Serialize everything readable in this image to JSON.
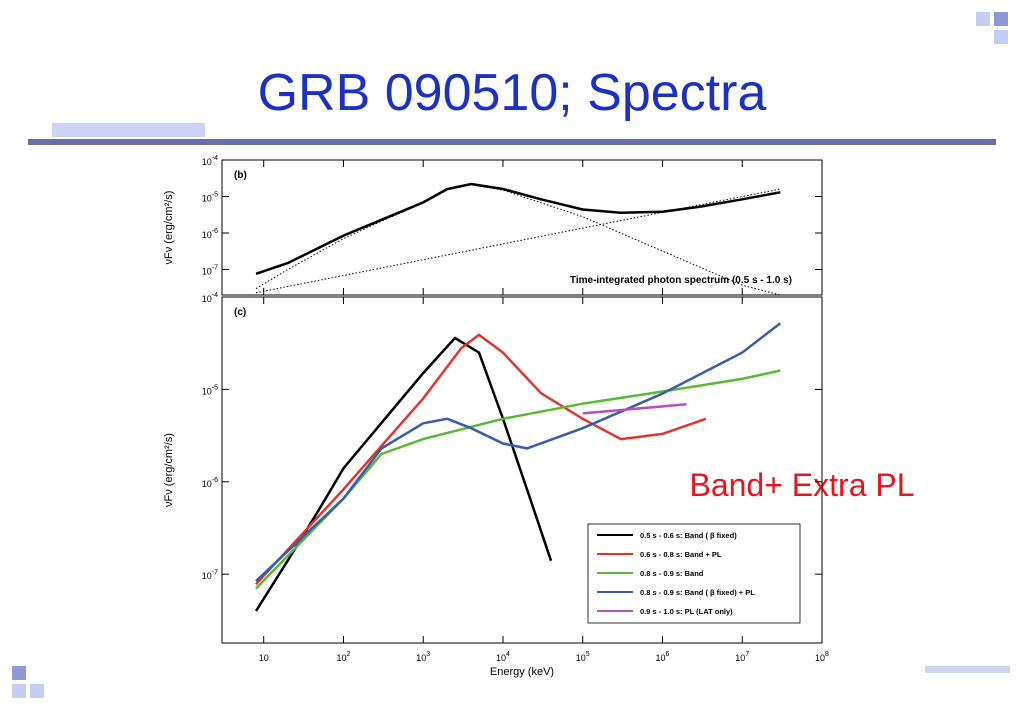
{
  "title": "GRB 090510; Spectra",
  "annotation": "Band+ Extra PL",
  "chart_data": [
    {
      "type": "line",
      "label": "(b)",
      "annotation": "Time-integrated photon spectrum (0.5 s - 1.0 s)",
      "y_label": "νFν (erg/cm²/s)",
      "x_log": true,
      "y_log": true,
      "xlim": [
        3,
        100000000
      ],
      "ylim": [
        2e-08,
        0.0001
      ],
      "xticks": [
        10,
        100,
        1000,
        10000,
        100000,
        1000000,
        10000000,
        100000000
      ],
      "xtick_labels": false,
      "yticks": [
        {
          "value": 0.0001,
          "label": "10",
          "sup": "-4"
        },
        {
          "value": 1e-05,
          "label": "10",
          "sup": "-5"
        },
        {
          "value": 1e-06,
          "label": "10",
          "sup": "-6"
        },
        {
          "value": 1e-07,
          "label": "10",
          "sup": "-7"
        }
      ],
      "series": [
        {
          "color": "#000000",
          "width": 2.5,
          "x": [
            8,
            20,
            100,
            300,
            1000,
            2000,
            4000,
            10000,
            30000,
            100000,
            300000,
            1000000,
            3000000,
            10000000,
            30000000
          ],
          "values": [
            7.6e-08,
            1.5e-07,
            8.5e-07,
            2.3e-06,
            6.9e-06,
            1.6e-05,
            2.2e-05,
            1.6e-05,
            8.4e-06,
            4.4e-06,
            3.6e-06,
            3.8e-06,
            5.3e-06,
            8.4e-06,
            1.3e-05
          ]
        },
        {
          "color": "#000000",
          "width": 1,
          "dash": true,
          "x": [
            8,
            30000000
          ],
          "values": [
            2.3e-08,
            1.6e-05
          ]
        },
        {
          "color": "#000000",
          "width": 1,
          "dash": true,
          "x": [
            8,
            20,
            100,
            300,
            1000,
            2000,
            4000,
            10000,
            100000,
            1000000,
            10000000,
            30000000
          ],
          "values": [
            3e-08,
            1e-07,
            7e-07,
            2.1e-06,
            6.6e-06,
            1.5e-05,
            2.1e-05,
            1.5e-05,
            2.8e-06,
            3.2e-07,
            3.7e-08,
            2e-08
          ]
        }
      ]
    },
    {
      "type": "line",
      "label": "(c)",
      "y_label": "νFν (erg/cm²/s)",
      "x_label": "Energy (keV)",
      "x_log": true,
      "y_log": true,
      "legend": "lower right",
      "xlim": [
        3,
        100000000
      ],
      "ylim": [
        1.8e-08,
        0.0001
      ],
      "xticks": [
        10,
        {
          "value": 100,
          "label": "10",
          "sup": "2"
        },
        {
          "value": 1000,
          "label": "10",
          "sup": "3"
        },
        {
          "value": 10000,
          "label": "10",
          "sup": "4"
        },
        {
          "value": 100000,
          "label": "10",
          "sup": "5"
        },
        {
          "value": 1000000,
          "label": "10",
          "sup": "6"
        },
        {
          "value": 10000000,
          "label": "10",
          "sup": "7"
        },
        {
          "value": 100000000,
          "label": "10",
          "sup": "8"
        }
      ],
      "yticks": [
        {
          "value": 0.0001,
          "label": "10",
          "sup": "-4"
        },
        {
          "value": 1e-05,
          "label": "10",
          "sup": "-5"
        },
        {
          "value": 1e-06,
          "label": "10",
          "sup": "-6"
        },
        {
          "value": 1e-07,
          "label": "10",
          "sup": "-7"
        }
      ],
      "series": [
        {
          "name": "0.5 s - 0.6 s: Band ( β fixed)",
          "color": "#000000",
          "width": 2.5,
          "x": [
            8,
            20,
            50,
            100,
            1000,
            2500,
            5000,
            10000,
            20000,
            40000
          ],
          "values": [
            4e-08,
            1.4e-07,
            5.1e-07,
            1.4e-06,
            1.5e-05,
            3.6e-05,
            2.5e-05,
            4.8e-06,
            8.3e-07,
            1.4e-07
          ]
        },
        {
          "name": "0.6 s - 0.8 s: Band + PL",
          "color": "#e0352b",
          "width": 2.5,
          "x": [
            8,
            100,
            1000,
            3000,
            5000,
            10000,
            30000,
            100000,
            300000,
            1000000,
            3500000
          ],
          "values": [
            7.8e-08,
            8.3e-07,
            8e-06,
            2.8e-05,
            3.9e-05,
            2.5e-05,
            9.1e-06,
            4.8e-06,
            2.9e-06,
            3.3e-06,
            4.8e-06
          ]
        },
        {
          "name": "0.8 s - 0.9 s: Band",
          "color": "#5ab833",
          "width": 2.5,
          "x": [
            8,
            100,
            300,
            1000,
            10000,
            100000,
            1000000,
            10000000,
            30000000
          ],
          "values": [
            7e-08,
            6.6e-07,
            2e-06,
            2.9e-06,
            4.8e-06,
            7e-06,
            9.5e-06,
            1.3e-05,
            1.6e-05
          ]
        },
        {
          "name": "0.8 s - 0.9 s: Band ( β fixed) + PL",
          "color": "#3a5ca8",
          "width": 2.5,
          "x": [
            8,
            100,
            300,
            1000,
            2000,
            4000,
            10000,
            20000,
            100000,
            1000000,
            10000000,
            30000000
          ],
          "values": [
            8.4e-08,
            6.6e-07,
            2.3e-06,
            4.3e-06,
            4.8e-06,
            3.8e-06,
            2.6e-06,
            2.3e-06,
            3.8e-06,
            9e-06,
            2.5e-05,
            5.2e-05
          ]
        },
        {
          "name": "0.9 s - 1.0 s: PL (LAT only)",
          "color": "#b64fc0",
          "width": 2.5,
          "x": [
            100000,
            2000000
          ],
          "values": [
            5.5e-06,
            6.9e-06
          ]
        }
      ]
    }
  ]
}
